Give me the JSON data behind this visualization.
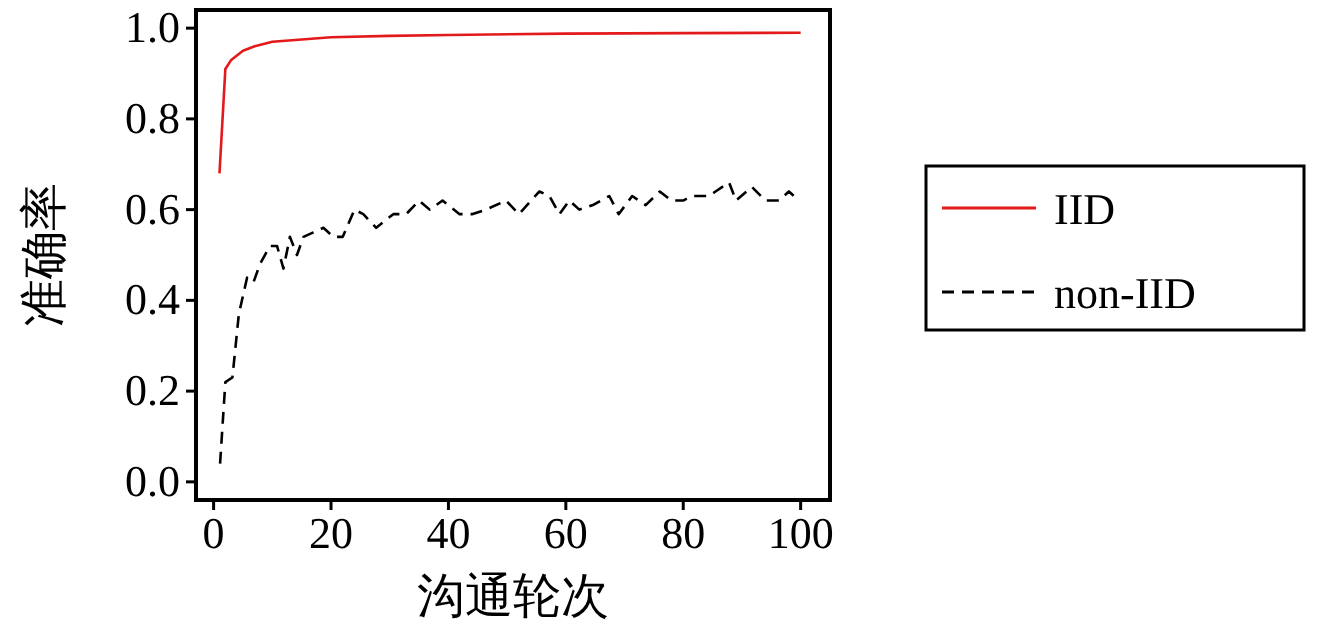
{
  "chart_data": {
    "type": "line",
    "xlabel": "沟通轮次",
    "ylabel": "准确率",
    "xlim": [
      -3,
      105
    ],
    "ylim": [
      -0.04,
      1.04
    ],
    "xticks": [
      0,
      20,
      40,
      60,
      80,
      100
    ],
    "yticks": [
      {
        "value": 0,
        "label": "0.0"
      },
      {
        "value": 0.2,
        "label": "0.2"
      },
      {
        "value": 0.4,
        "label": "0.4"
      },
      {
        "value": 0.6,
        "label": "0.6"
      },
      {
        "value": 0.8,
        "label": "0.8"
      },
      {
        "value": 1,
        "label": "1.0"
      }
    ],
    "legend": "right",
    "grid": false,
    "series": [
      {
        "name": "IID",
        "color": "#e31a1c",
        "line_style": "solid",
        "x": [
          1,
          2,
          3,
          5,
          7,
          10,
          15,
          20,
          30,
          40,
          60,
          80,
          100
        ],
        "values": [
          0.68,
          0.91,
          0.93,
          0.95,
          0.96,
          0.97,
          0.975,
          0.98,
          0.983,
          0.985,
          0.988,
          0.989,
          0.99
        ]
      },
      {
        "name": "non-IID",
        "color": "#000000",
        "line_style": "dashed",
        "x": [
          1.1,
          2,
          3.2,
          4.3,
          5.7,
          6.8,
          7.9,
          9.6,
          10.8,
          11.9,
          13,
          14.2,
          15.3,
          17,
          18.7,
          20.4,
          22,
          24,
          25.5,
          27.7,
          30.6,
          32.8,
          35,
          36.8,
          39,
          41.9,
          44,
          46.4,
          49.8,
          52,
          55.5,
          57.2,
          58.9,
          60.6,
          62.3,
          64.6,
          67.4,
          69,
          71.3,
          73.6,
          76,
          78,
          80,
          81.5,
          84.4,
          85.5,
          87.8,
          89,
          91.7,
          94,
          96.3,
          98,
          99.7
        ],
        "values": [
          0.04,
          0.22,
          0.23,
          0.37,
          0.45,
          0.44,
          0.48,
          0.52,
          0.52,
          0.47,
          0.54,
          0.5,
          0.54,
          0.55,
          0.56,
          0.54,
          0.54,
          0.6,
          0.59,
          0.56,
          0.59,
          0.59,
          0.62,
          0.6,
          0.62,
          0.59,
          0.59,
          0.6,
          0.62,
          0.59,
          0.64,
          0.63,
          0.59,
          0.62,
          0.6,
          0.61,
          0.63,
          0.59,
          0.63,
          0.61,
          0.64,
          0.62,
          0.62,
          0.63,
          0.63,
          0.64,
          0.66,
          0.62,
          0.65,
          0.62,
          0.62,
          0.64,
          0.62
        ]
      }
    ]
  }
}
